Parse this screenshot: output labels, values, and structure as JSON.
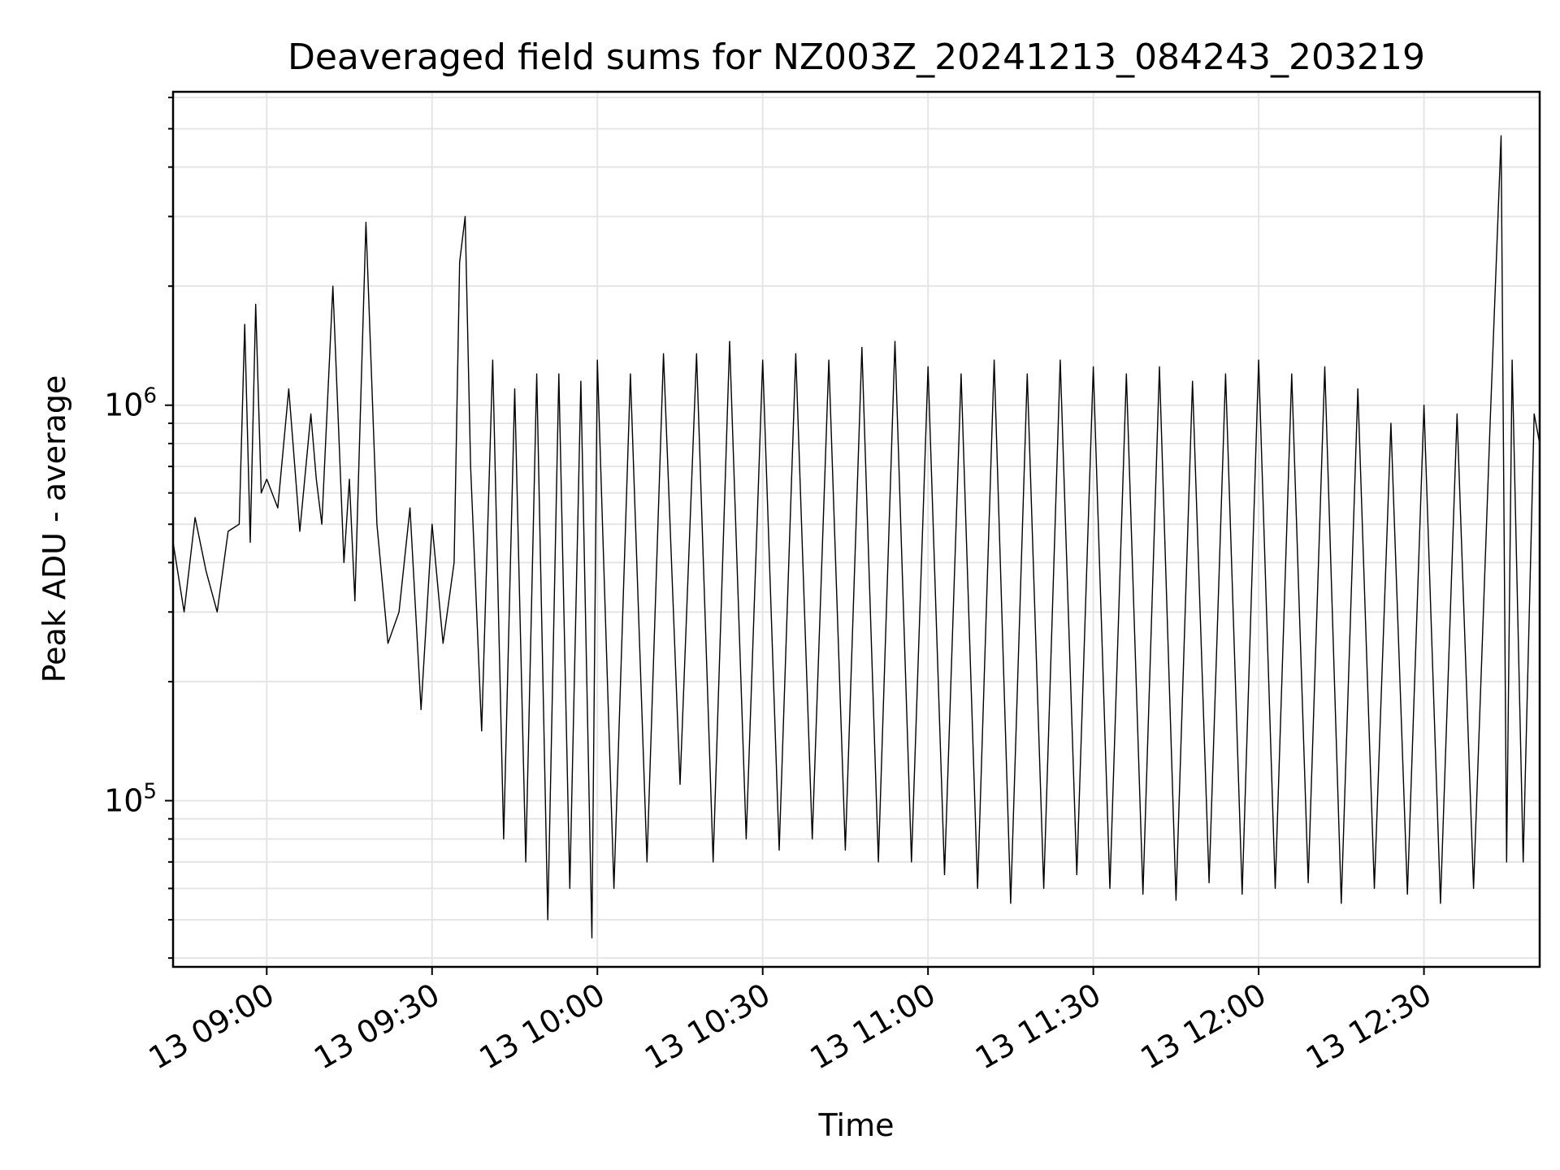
{
  "chart_data": {
    "type": "line",
    "title": "Deaveraged field sums for NZ003Z_20241213_084243_203219",
    "xlabel": "Time",
    "ylabel": "Peak ADU - average",
    "yscale": "log",
    "ylim": [
      38000,
      6200000
    ],
    "xlim": [
      "2024-12-13 08:43",
      "2024-12-13 12:51"
    ],
    "x_ticks": [
      {
        "value": "2024-12-13 09:00",
        "label": "13 09:00"
      },
      {
        "value": "2024-12-13 09:30",
        "label": "13 09:30"
      },
      {
        "value": "2024-12-13 10:00",
        "label": "13 10:00"
      },
      {
        "value": "2024-12-13 10:30",
        "label": "13 10:30"
      },
      {
        "value": "2024-12-13 11:00",
        "label": "13 11:00"
      },
      {
        "value": "2024-12-13 11:30",
        "label": "13 11:30"
      },
      {
        "value": "2024-12-13 12:00",
        "label": "13 12:00"
      },
      {
        "value": "2024-12-13 12:30",
        "label": "13 12:30"
      }
    ],
    "y_ticks": [
      {
        "value": 100000,
        "base": "10",
        "exp": "5"
      },
      {
        "value": 1000000,
        "base": "10",
        "exp": "6"
      }
    ],
    "grid": true,
    "series_color": "#000000",
    "series": [
      {
        "x": [
          "2024-12-13 08:43",
          "2024-12-13 08:45",
          "2024-12-13 08:47",
          "2024-12-13 08:49",
          "2024-12-13 08:51",
          "2024-12-13 08:53",
          "2024-12-13 08:55",
          "2024-12-13 08:56",
          "2024-12-13 08:57",
          "2024-12-13 08:58",
          "2024-12-13 08:59",
          "2024-12-13 09:00",
          "2024-12-13 09:02",
          "2024-12-13 09:04",
          "2024-12-13 09:06",
          "2024-12-13 09:08",
          "2024-12-13 09:09",
          "2024-12-13 09:10",
          "2024-12-13 09:12",
          "2024-12-13 09:14",
          "2024-12-13 09:15",
          "2024-12-13 09:16",
          "2024-12-13 09:18",
          "2024-12-13 09:20",
          "2024-12-13 09:22",
          "2024-12-13 09:24",
          "2024-12-13 09:26",
          "2024-12-13 09:28",
          "2024-12-13 09:30",
          "2024-12-13 09:32",
          "2024-12-13 09:34",
          "2024-12-13 09:35",
          "2024-12-13 09:36",
          "2024-12-13 09:37",
          "2024-12-13 09:39",
          "2024-12-13 09:41",
          "2024-12-13 09:43",
          "2024-12-13 09:45",
          "2024-12-13 09:47",
          "2024-12-13 09:49",
          "2024-12-13 09:51",
          "2024-12-13 09:53",
          "2024-12-13 09:55",
          "2024-12-13 09:57",
          "2024-12-13 09:59",
          "2024-12-13 10:00",
          "2024-12-13 10:03",
          "2024-12-13 10:06",
          "2024-12-13 10:09",
          "2024-12-13 10:12",
          "2024-12-13 10:15",
          "2024-12-13 10:18",
          "2024-12-13 10:21",
          "2024-12-13 10:24",
          "2024-12-13 10:27",
          "2024-12-13 10:30",
          "2024-12-13 10:33",
          "2024-12-13 10:36",
          "2024-12-13 10:39",
          "2024-12-13 10:42",
          "2024-12-13 10:45",
          "2024-12-13 10:48",
          "2024-12-13 10:51",
          "2024-12-13 10:54",
          "2024-12-13 10:57",
          "2024-12-13 11:00",
          "2024-12-13 11:03",
          "2024-12-13 11:06",
          "2024-12-13 11:09",
          "2024-12-13 11:12",
          "2024-12-13 11:15",
          "2024-12-13 11:18",
          "2024-12-13 11:21",
          "2024-12-13 11:24",
          "2024-12-13 11:27",
          "2024-12-13 11:30",
          "2024-12-13 11:33",
          "2024-12-13 11:36",
          "2024-12-13 11:39",
          "2024-12-13 11:42",
          "2024-12-13 11:45",
          "2024-12-13 11:48",
          "2024-12-13 11:51",
          "2024-12-13 11:54",
          "2024-12-13 11:57",
          "2024-12-13 12:00",
          "2024-12-13 12:03",
          "2024-12-13 12:06",
          "2024-12-13 12:09",
          "2024-12-13 12:12",
          "2024-12-13 12:15",
          "2024-12-13 12:18",
          "2024-12-13 12:21",
          "2024-12-13 12:24",
          "2024-12-13 12:27",
          "2024-12-13 12:30",
          "2024-12-13 12:33",
          "2024-12-13 12:36",
          "2024-12-13 12:39",
          "2024-12-13 12:42",
          "2024-12-13 12:44",
          "2024-12-13 12:45",
          "2024-12-13 12:46",
          "2024-12-13 12:48",
          "2024-12-13 12:50",
          "2024-12-13 12:51"
        ],
        "y": [
          450000,
          300000,
          520000,
          380000,
          300000,
          480000,
          500000,
          1600000,
          450000,
          1800000,
          600000,
          650000,
          550000,
          1100000,
          480000,
          950000,
          650000,
          500000,
          2000000,
          400000,
          650000,
          320000,
          2900000,
          500000,
          250000,
          300000,
          550000,
          170000,
          500000,
          250000,
          400000,
          2300000,
          3000000,
          700000,
          150000,
          1300000,
          80000,
          1100000,
          70000,
          1200000,
          50000,
          1200000,
          60000,
          1150000,
          45000,
          1300000,
          60000,
          1200000,
          70000,
          1350000,
          110000,
          1350000,
          70000,
          1450000,
          80000,
          1300000,
          75000,
          1350000,
          80000,
          1300000,
          75000,
          1400000,
          70000,
          1450000,
          70000,
          1250000,
          65000,
          1200000,
          60000,
          1300000,
          55000,
          1200000,
          60000,
          1300000,
          65000,
          1250000,
          60000,
          1200000,
          58000,
          1250000,
          56000,
          1150000,
          62000,
          1200000,
          58000,
          1300000,
          60000,
          1200000,
          62000,
          1250000,
          55000,
          1100000,
          60000,
          900000,
          58000,
          1000000,
          55000,
          950000,
          60000,
          900000,
          4800000,
          70000,
          1300000,
          70000,
          950000,
          800000
        ]
      }
    ]
  }
}
